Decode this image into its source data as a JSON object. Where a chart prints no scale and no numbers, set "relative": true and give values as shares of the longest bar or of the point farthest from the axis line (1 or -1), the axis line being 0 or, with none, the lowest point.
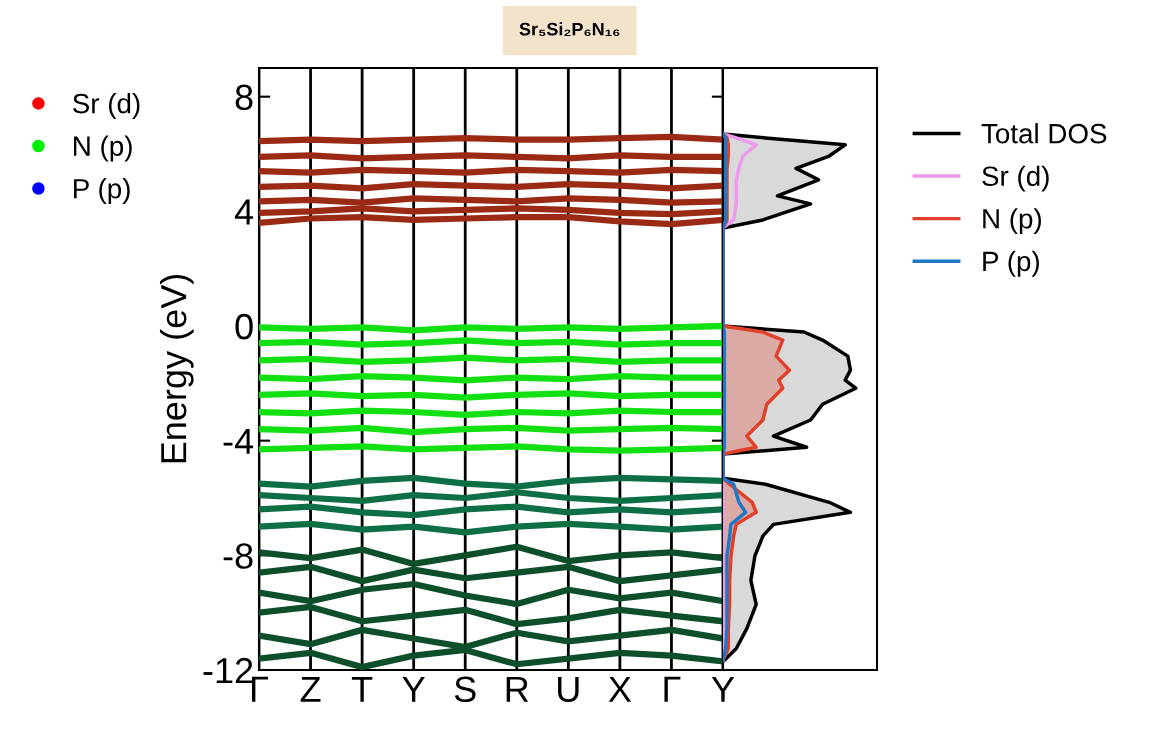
{
  "chart_data": [
    {
      "type": "line",
      "title": "Sr₅Si₂P₆N₁₆",
      "ylabel": "Energy (eV)",
      "categories": [
        "Γ",
        "Z",
        "T",
        "Y",
        "S",
        "R",
        "U",
        "X",
        "Γ",
        "Y"
      ],
      "ylim": [
        -12,
        9
      ],
      "yticks": [
        -12,
        -8,
        -4,
        0,
        4,
        8
      ],
      "grid": "x",
      "legend": "left",
      "series": [
        {
          "color": "#9a2a14",
          "values": [
            3.6,
            3.75,
            3.8,
            3.7,
            3.75,
            3.8,
            3.8,
            3.65,
            3.55,
            3.7
          ]
        },
        {
          "color": "#9a2a14",
          "values": [
            3.95,
            4.0,
            4.1,
            4.0,
            4.05,
            4.1,
            4.05,
            3.95,
            3.9,
            4.0
          ]
        },
        {
          "color": "#9a2a14",
          "values": [
            4.35,
            4.4,
            4.3,
            4.45,
            4.4,
            4.35,
            4.45,
            4.4,
            4.3,
            4.35
          ]
        },
        {
          "color": "#9a2a14",
          "values": [
            4.85,
            4.9,
            4.8,
            4.95,
            4.9,
            4.85,
            4.95,
            4.9,
            4.8,
            4.9
          ]
        },
        {
          "color": "#9a2a14",
          "values": [
            5.4,
            5.35,
            5.45,
            5.4,
            5.35,
            5.45,
            5.4,
            5.35,
            5.45,
            5.4
          ]
        },
        {
          "color": "#9a2a14",
          "values": [
            5.9,
            5.95,
            5.85,
            5.9,
            5.95,
            5.9,
            5.85,
            5.95,
            5.9,
            5.9
          ]
        },
        {
          "color": "#9a2a14",
          "values": [
            6.45,
            6.5,
            6.45,
            6.5,
            6.55,
            6.5,
            6.5,
            6.55,
            6.6,
            6.5
          ]
        },
        {
          "color": "#12e012",
          "values": [
            -0.05,
            -0.1,
            -0.05,
            -0.15,
            -0.05,
            -0.1,
            -0.05,
            -0.1,
            -0.05,
            0
          ]
        },
        {
          "color": "#12e012",
          "values": [
            -0.6,
            -0.55,
            -0.65,
            -0.6,
            -0.5,
            -0.6,
            -0.55,
            -0.65,
            -0.6,
            -0.6
          ]
        },
        {
          "color": "#12e012",
          "values": [
            -1.2,
            -1.15,
            -1.25,
            -1.2,
            -1.1,
            -1.2,
            -1.15,
            -1.25,
            -1.2,
            -1.2
          ]
        },
        {
          "color": "#12e012",
          "values": [
            -1.8,
            -1.85,
            -1.75,
            -1.8,
            -1.9,
            -1.8,
            -1.85,
            -1.75,
            -1.8,
            -1.8
          ]
        },
        {
          "color": "#12e012",
          "values": [
            -2.4,
            -2.35,
            -2.45,
            -2.4,
            -2.5,
            -2.4,
            -2.35,
            -2.45,
            -2.4,
            -2.4
          ]
        },
        {
          "color": "#12e012",
          "values": [
            -3.0,
            -3.05,
            -2.95,
            -3.0,
            -3.1,
            -3.0,
            -3.05,
            -2.95,
            -3.0,
            -3.0
          ]
        },
        {
          "color": "#12e012",
          "values": [
            -3.6,
            -3.65,
            -3.55,
            -3.7,
            -3.6,
            -3.55,
            -3.65,
            -3.6,
            -3.55,
            -3.6
          ]
        },
        {
          "color": "#12e012",
          "values": [
            -4.3,
            -4.25,
            -4.2,
            -4.3,
            -4.25,
            -4.2,
            -4.3,
            -4.35,
            -4.3,
            -4.25
          ]
        },
        {
          "color": "#0e6e45",
          "values": [
            -5.5,
            -5.6,
            -5.4,
            -5.3,
            -5.5,
            -5.6,
            -5.4,
            -5.3,
            -5.35,
            -5.4
          ]
        },
        {
          "color": "#0e6e45",
          "values": [
            -5.9,
            -6.0,
            -6.1,
            -5.9,
            -6.0,
            -5.8,
            -6.0,
            -6.1,
            -6.0,
            -5.9
          ]
        },
        {
          "color": "#0e6e45",
          "values": [
            -6.4,
            -6.3,
            -6.5,
            -6.6,
            -6.4,
            -6.3,
            -6.5,
            -6.4,
            -6.5,
            -6.4
          ]
        },
        {
          "color": "#0e6e45",
          "values": [
            -7.0,
            -6.9,
            -7.1,
            -7.0,
            -7.2,
            -7.0,
            -6.9,
            -7.0,
            -7.1,
            -7.0
          ]
        },
        {
          "color": "#0d4f2a",
          "values": [
            -7.9,
            -8.1,
            -7.8,
            -8.3,
            -8.0,
            -7.7,
            -8.2,
            -8.0,
            -7.9,
            -8.1
          ]
        },
        {
          "color": "#0d4f2a",
          "values": [
            -8.6,
            -8.4,
            -8.9,
            -8.5,
            -8.8,
            -8.6,
            -8.4,
            -8.9,
            -8.7,
            -8.5
          ]
        },
        {
          "color": "#0d4f2a",
          "values": [
            -9.3,
            -9.6,
            -9.2,
            -9.0,
            -9.4,
            -9.7,
            -9.2,
            -9.5,
            -9.3,
            -9.6
          ]
        },
        {
          "color": "#0d4f2a",
          "values": [
            -10.0,
            -9.8,
            -10.3,
            -10.1,
            -9.9,
            -10.4,
            -10.2,
            -9.9,
            -10.1,
            -10.3
          ]
        },
        {
          "color": "#0d4f2a",
          "values": [
            -10.8,
            -11.1,
            -10.6,
            -10.9,
            -11.2,
            -10.7,
            -11.0,
            -10.8,
            -10.6,
            -10.9
          ]
        },
        {
          "color": "#0d4f2a",
          "values": [
            -11.6,
            -11.4,
            -11.9,
            -11.5,
            -11.3,
            -11.8,
            -11.6,
            -11.4,
            -11.5,
            -11.7
          ]
        },
        {
          "type": "scatter",
          "name": "Sr (d)",
          "color": "#ff0000",
          "values": [
            null,
            null,
            null,
            null,
            null,
            null,
            null,
            null,
            null,
            null
          ]
        },
        {
          "type": "scatter",
          "name": "N (p)",
          "color": "#00ee00",
          "values": [
            null,
            null,
            null,
            null,
            null,
            null,
            null,
            null,
            null,
            null
          ]
        },
        {
          "type": "scatter",
          "name": "P (p)",
          "color": "#0000ff",
          "values": [
            null,
            null,
            null,
            null,
            null,
            null,
            null,
            null,
            null,
            null
          ]
        }
      ]
    },
    {
      "type": "line",
      "orientation": "horizontal",
      "relative": true,
      "legend": "right",
      "ylim": [
        -12,
        9
      ],
      "x": [
        -11.66,
        -11.25,
        -10.55,
        -9.71,
        -8.87,
        -8.03,
        -7.33,
        -6.92,
        -6.5,
        -6.15,
        -5.52,
        -5.31,
        -4.47,
        -4.23,
        -3.84,
        -3.28,
        -2.73,
        -2.17,
        -1.89,
        -1.54,
        -1.05,
        -0.49,
        -0.21,
        0,
        3.42,
        3.7,
        4.26,
        4.54,
        5.1,
        5.5,
        5.93,
        6.32,
        6.56,
        6.7
      ],
      "series": [
        {
          "type": "area",
          "name": "Total DOS",
          "color": "#000000",
          "values": [
            0.01,
            0.1,
            0.18,
            0.25,
            0.21,
            0.24,
            0.3,
            0.38,
            0.96,
            0.8,
            0.32,
            0,
            0,
            0.63,
            0.38,
            0.66,
            0.75,
            1.0,
            0.92,
            0.96,
            0.94,
            0.75,
            0.61,
            0,
            0,
            0.3,
            0.66,
            0.41,
            0.72,
            0.55,
            0.8,
            0.92,
            0.32,
            0
          ]
        },
        {
          "type": "line",
          "name": "Sr (d)",
          "color": "#ee99ee",
          "values": [
            0,
            0,
            0,
            0,
            0,
            0,
            0,
            0,
            0,
            0,
            0,
            0,
            0,
            0,
            0,
            0,
            0,
            0,
            0,
            0,
            0,
            0,
            0,
            0,
            0,
            0.08,
            0.1,
            0.1,
            0.1,
            0.12,
            0.15,
            0.25,
            0.1,
            0
          ]
        },
        {
          "type": "area",
          "name": "N (p)",
          "color": "#e0402a",
          "values": [
            0,
            0.04,
            0.04,
            0.05,
            0.05,
            0.06,
            0.08,
            0.1,
            0.25,
            0.22,
            0.05,
            0,
            0,
            0.25,
            0.18,
            0.3,
            0.33,
            0.45,
            0.42,
            0.5,
            0.4,
            0.45,
            0.3,
            0,
            0,
            0.03,
            0.03,
            0.03,
            0.03,
            0.03,
            0.04,
            0.04,
            0.03,
            0
          ]
        },
        {
          "type": "line",
          "name": "P (p)",
          "color": "#1f77c8",
          "values": [
            0,
            0.02,
            0.03,
            0.03,
            0.03,
            0.03,
            0.05,
            0.06,
            0.17,
            0.12,
            0.08,
            0,
            0,
            0.01,
            0.01,
            0.01,
            0.01,
            0.01,
            0.01,
            0.01,
            0.01,
            0.01,
            0.01,
            0,
            0,
            0.02,
            0.02,
            0.02,
            0.02,
            0.02,
            0.02,
            0.02,
            0.02,
            0
          ]
        }
      ]
    }
  ]
}
